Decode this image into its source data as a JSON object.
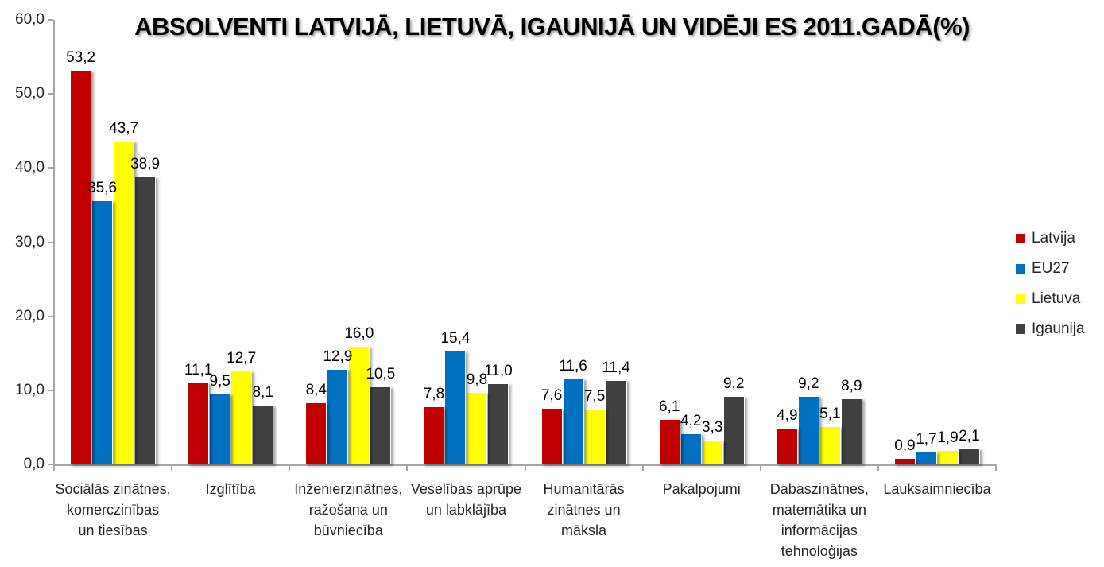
{
  "title": "ABSOLVENTI LATVIJĀ, LIETUVĀ, IGAUNIJĀ UN VIDĒJI ES 2011.GADĀ(%)",
  "colors": {
    "latvija": "#C00000",
    "eu27": "#0070C0",
    "lietuva": "#FFFF00",
    "igaunija": "#404040",
    "axis": "#A6A6A6",
    "text": "#262626",
    "title_text": "#000000",
    "background": "#FFFFFF"
  },
  "chart_data": {
    "type": "bar",
    "title": "ABSOLVENTI LATVIJĀ, LIETUVĀ, IGAUNIJĀ UN VIDĒJI ES 2011.GADĀ(%)",
    "categories": [
      "Sociālās zinātnes, komerczinības un tiesības",
      "Izglītība",
      "Inženierzinātnes, ražošana un būvniecība",
      "Veselības aprūpe un labklājība",
      "Humanitārās zinātnes un māksla",
      "Pakalpojumi",
      "Dabaszinātnes, matemātika un informācijas tehnoloģijas",
      "Lauksaimniecība"
    ],
    "category_lines": [
      [
        "Sociālās zinātnes,",
        "komerczinības",
        "un tiesības"
      ],
      [
        "Izglītība"
      ],
      [
        "Inženierzinātnes,",
        "ražošana un",
        "būvniecība"
      ],
      [
        "Veselības aprūpe",
        "un labklājība"
      ],
      [
        "Humanitārās",
        "zinātnes un",
        "māksla"
      ],
      [
        "Pakalpojumi"
      ],
      [
        "Dabaszinātnes,",
        "matemātika un",
        "informācijas",
        "tehnoloģijas"
      ],
      [
        "Lauksaimniecība"
      ]
    ],
    "series": [
      {
        "name": "Latvija",
        "color": "#C00000",
        "values": [
          53.2,
          11.1,
          8.4,
          7.8,
          7.6,
          6.1,
          4.9,
          0.9
        ]
      },
      {
        "name": "EU27",
        "color": "#0070C0",
        "values": [
          35.6,
          9.5,
          12.9,
          15.4,
          11.6,
          4.2,
          9.2,
          1.7
        ]
      },
      {
        "name": "Lietuva",
        "color": "#FFFF00",
        "values": [
          43.7,
          12.7,
          16.0,
          9.8,
          7.5,
          3.3,
          5.1,
          1.9
        ]
      },
      {
        "name": "Igaunija",
        "color": "#404040",
        "values": [
          38.9,
          8.1,
          10.5,
          11.0,
          11.4,
          9.2,
          8.9,
          2.1
        ]
      }
    ],
    "ylim": [
      0,
      60
    ],
    "y_tick_values": [
      0,
      10,
      20,
      30,
      40,
      50,
      60
    ],
    "y_ticks": [
      "0,0",
      "10,0",
      "20,0",
      "30,0",
      "40,0",
      "50,0",
      "60,0"
    ],
    "decimal_separator": ",",
    "data_labels": true,
    "grid": false,
    "legend_position": "right"
  }
}
